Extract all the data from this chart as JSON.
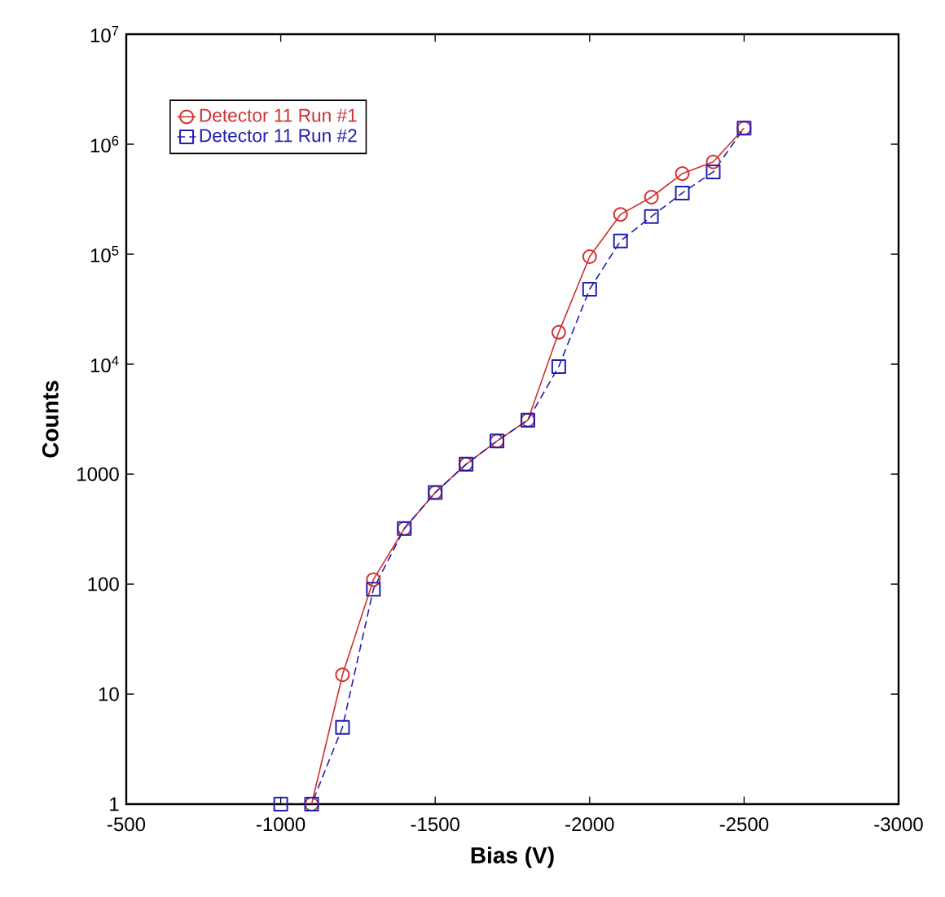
{
  "chart_data": {
    "type": "line",
    "xlabel": "Bias (V)",
    "ylabel": "Counts",
    "x": [
      -1000,
      -1100,
      -1200,
      -1300,
      -1400,
      -1500,
      -1600,
      -1700,
      -1800,
      -1900,
      -2000,
      -2100,
      -2200,
      -2300,
      -2400,
      -2500
    ],
    "series": [
      {
        "name": "Detector 11 Run #1",
        "color": "#d03030",
        "marker": "circle",
        "line_style": "solid",
        "x": [
          -1100,
          -1200,
          -1300,
          -1400,
          -1500,
          -1600,
          -1700,
          -1800,
          -1900,
          -2000,
          -2100,
          -2200,
          -2300,
          -2400,
          -2500
        ],
        "values": [
          1,
          15,
          110,
          320,
          680,
          1230,
          2000,
          3100,
          19500,
          95000,
          230000,
          330000,
          540000,
          690000,
          1400000
        ]
      },
      {
        "name": "Detector 11 Run #2",
        "color": "#2020b0",
        "marker": "square",
        "line_style": "dashed",
        "values": [
          1,
          1,
          5,
          90,
          320,
          680,
          1230,
          2000,
          3100,
          9500,
          48000,
          132000,
          220000,
          360000,
          560000,
          1400000
        ]
      }
    ],
    "xlim": [
      -500,
      -3000
    ],
    "xticks": [
      -500,
      -1000,
      -1500,
      -2000,
      -2500,
      -3000
    ],
    "ylim": [
      1,
      10000000
    ],
    "yticks": [
      1,
      10,
      100,
      1000,
      {
        "value": 10000,
        "label": "10$^{4}$"
      },
      {
        "value": 100000,
        "label": "10$^{5}$"
      },
      {
        "value": 1000000,
        "label": "10$^{6}$"
      },
      {
        "value": 10000000,
        "label": "10$^{7}$"
      }
    ],
    "log": "y",
    "grid": false,
    "legend": "top left"
  }
}
